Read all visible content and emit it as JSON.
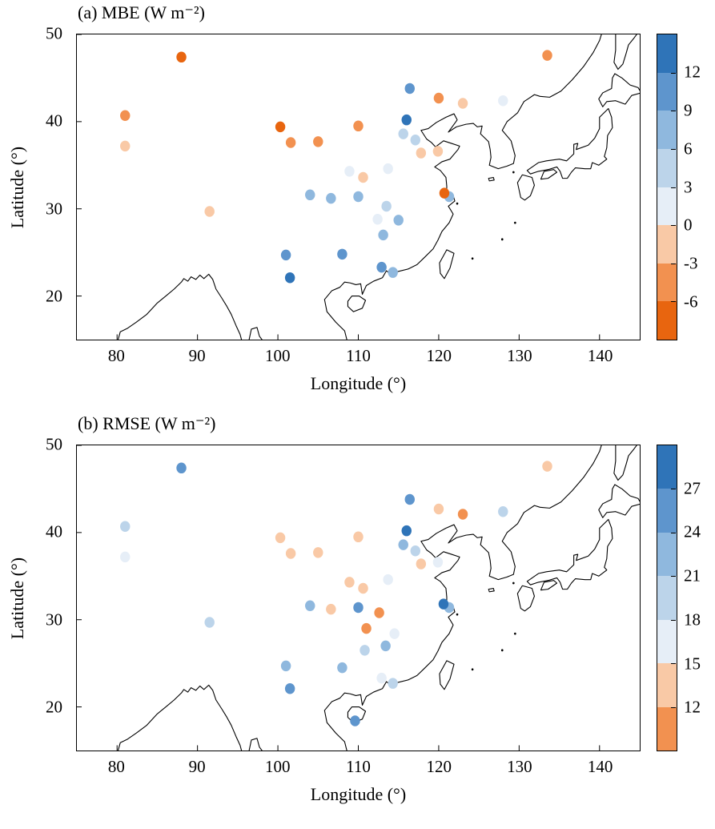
{
  "chart_data": [
    {
      "type": "scatter",
      "panel": "a",
      "title": "(a) MBE (W m⁻²)",
      "xlabel": "Longitude (°)",
      "ylabel": "Latitude (°)",
      "xlim": [
        75,
        145
      ],
      "ylim": [
        15,
        50
      ],
      "xticks": [
        80,
        90,
        100,
        110,
        120,
        130,
        140
      ],
      "yticks": [
        20,
        30,
        40,
        50
      ],
      "grid": false,
      "colorbar": {
        "position": "right",
        "vmin": -9,
        "vmax": 15,
        "step": 3,
        "ticks": [
          12,
          9,
          6,
          3,
          0,
          -3,
          -6
        ],
        "colors_bottom_to_top": [
          "#e8650f",
          "#f29150",
          "#f9c9a6",
          "#e6eef7",
          "#bcd4ea",
          "#8fb8de",
          "#5e95cd",
          "#2f74b8"
        ]
      },
      "points": [
        {
          "lon": 88.0,
          "lat": 47.4,
          "value": -7
        },
        {
          "lon": 133.5,
          "lat": 47.6,
          "value": -4
        },
        {
          "lon": 81.0,
          "lat": 40.7,
          "value": -4
        },
        {
          "lon": 81.0,
          "lat": 37.2,
          "value": -2
        },
        {
          "lon": 100.3,
          "lat": 39.4,
          "value": -7
        },
        {
          "lon": 101.6,
          "lat": 37.6,
          "value": -4
        },
        {
          "lon": 105.0,
          "lat": 37.7,
          "value": -4
        },
        {
          "lon": 110.0,
          "lat": 39.5,
          "value": -4
        },
        {
          "lon": 116.4,
          "lat": 43.8,
          "value": 10
        },
        {
          "lon": 120.0,
          "lat": 42.7,
          "value": -4
        },
        {
          "lon": 123.0,
          "lat": 42.1,
          "value": -2
        },
        {
          "lon": 128.0,
          "lat": 42.4,
          "value": 2
        },
        {
          "lon": 116.0,
          "lat": 40.2,
          "value": 13
        },
        {
          "lon": 115.6,
          "lat": 38.6,
          "value": 5
        },
        {
          "lon": 117.1,
          "lat": 37.9,
          "value": 4
        },
        {
          "lon": 117.8,
          "lat": 36.4,
          "value": -1
        },
        {
          "lon": 119.9,
          "lat": 36.6,
          "value": -1
        },
        {
          "lon": 108.9,
          "lat": 34.3,
          "value": 1
        },
        {
          "lon": 110.6,
          "lat": 33.6,
          "value": -1
        },
        {
          "lon": 113.7,
          "lat": 34.6,
          "value": 1
        },
        {
          "lon": 104.0,
          "lat": 31.6,
          "value": 7
        },
        {
          "lon": 106.6,
          "lat": 31.2,
          "value": 7
        },
        {
          "lon": 110.0,
          "lat": 31.4,
          "value": 7
        },
        {
          "lon": 113.5,
          "lat": 30.3,
          "value": 4
        },
        {
          "lon": 112.4,
          "lat": 28.8,
          "value": 2
        },
        {
          "lon": 115.0,
          "lat": 28.7,
          "value": 7
        },
        {
          "lon": 91.5,
          "lat": 29.7,
          "value": -2
        },
        {
          "lon": 113.1,
          "lat": 27.0,
          "value": 7
        },
        {
          "lon": 101.0,
          "lat": 24.7,
          "value": 10
        },
        {
          "lon": 108.0,
          "lat": 24.8,
          "value": 10
        },
        {
          "lon": 101.5,
          "lat": 22.1,
          "value": 13
        },
        {
          "lon": 112.9,
          "lat": 23.3,
          "value": 10
        },
        {
          "lon": 114.3,
          "lat": 22.7,
          "value": 8
        },
        {
          "lon": 121.3,
          "lat": 31.4,
          "value": 7
        },
        {
          "lon": 120.7,
          "lat": 31.8,
          "value": -7
        }
      ]
    },
    {
      "type": "scatter",
      "panel": "b",
      "title": "(b) RMSE (W m⁻²)",
      "xlabel": "Longitude (°)",
      "ylabel": "Latitude (°)",
      "xlim": [
        75,
        145
      ],
      "ylim": [
        15,
        50
      ],
      "xticks": [
        80,
        90,
        100,
        110,
        120,
        130,
        140
      ],
      "yticks": [
        20,
        30,
        40,
        50
      ],
      "grid": false,
      "colorbar": {
        "position": "right",
        "vmin": 9,
        "vmax": 30,
        "step": 3,
        "ticks": [
          27,
          24,
          21,
          18,
          15,
          12
        ],
        "colors_bottom_to_top": [
          "#f29150",
          "#f9c9a6",
          "#e6eef7",
          "#bcd4ea",
          "#8fb8de",
          "#5e95cd",
          "#2f74b8"
        ]
      },
      "points": [
        {
          "lon": 88.0,
          "lat": 47.4,
          "value": 25
        },
        {
          "lon": 133.5,
          "lat": 47.6,
          "value": 13
        },
        {
          "lon": 81.0,
          "lat": 40.7,
          "value": 19
        },
        {
          "lon": 81.0,
          "lat": 37.2,
          "value": 16
        },
        {
          "lon": 100.3,
          "lat": 39.4,
          "value": 13
        },
        {
          "lon": 101.6,
          "lat": 37.6,
          "value": 13
        },
        {
          "lon": 105.0,
          "lat": 37.7,
          "value": 13
        },
        {
          "lon": 110.0,
          "lat": 39.5,
          "value": 13
        },
        {
          "lon": 116.4,
          "lat": 43.8,
          "value": 25
        },
        {
          "lon": 120.0,
          "lat": 42.7,
          "value": 13
        },
        {
          "lon": 123.0,
          "lat": 42.1,
          "value": 10
        },
        {
          "lon": 128.0,
          "lat": 42.4,
          "value": 19
        },
        {
          "lon": 116.0,
          "lat": 40.2,
          "value": 28
        },
        {
          "lon": 115.6,
          "lat": 38.6,
          "value": 22
        },
        {
          "lon": 117.1,
          "lat": 37.9,
          "value": 19
        },
        {
          "lon": 117.8,
          "lat": 36.4,
          "value": 13
        },
        {
          "lon": 119.9,
          "lat": 36.6,
          "value": 16
        },
        {
          "lon": 108.9,
          "lat": 34.3,
          "value": 13
        },
        {
          "lon": 110.6,
          "lat": 33.6,
          "value": 13
        },
        {
          "lon": 113.7,
          "lat": 34.6,
          "value": 16
        },
        {
          "lon": 104.0,
          "lat": 31.6,
          "value": 22
        },
        {
          "lon": 106.6,
          "lat": 31.2,
          "value": 13
        },
        {
          "lon": 110.0,
          "lat": 31.4,
          "value": 26
        },
        {
          "lon": 112.6,
          "lat": 30.8,
          "value": 11
        },
        {
          "lon": 111.0,
          "lat": 29.0,
          "value": 11
        },
        {
          "lon": 114.5,
          "lat": 28.4,
          "value": 17
        },
        {
          "lon": 91.5,
          "lat": 29.7,
          "value": 19
        },
        {
          "lon": 113.4,
          "lat": 27.0,
          "value": 22
        },
        {
          "lon": 110.8,
          "lat": 26.5,
          "value": 19
        },
        {
          "lon": 101.0,
          "lat": 24.7,
          "value": 23
        },
        {
          "lon": 108.0,
          "lat": 24.5,
          "value": 23
        },
        {
          "lon": 101.5,
          "lat": 22.1,
          "value": 26
        },
        {
          "lon": 112.9,
          "lat": 23.3,
          "value": 16
        },
        {
          "lon": 114.3,
          "lat": 22.7,
          "value": 18
        },
        {
          "lon": 109.6,
          "lat": 18.4,
          "value": 24
        },
        {
          "lon": 121.3,
          "lat": 31.4,
          "value": 22
        },
        {
          "lon": 120.6,
          "lat": 31.8,
          "value": 28
        }
      ]
    }
  ]
}
